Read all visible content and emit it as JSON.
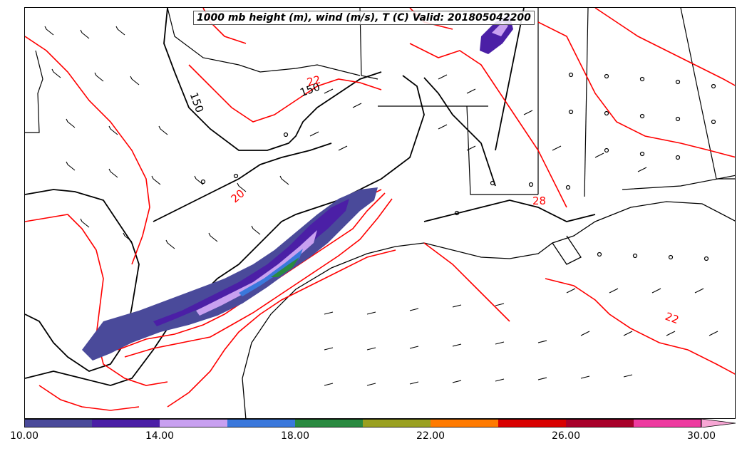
{
  "title": "1000 mb height (m), wind (m/s), T (C) Valid: 201805042200",
  "contour_labels": {
    "height_150_a": "150",
    "height_150_b": "150",
    "temp_22_a": "22",
    "temp_20": "20",
    "temp_28": "28",
    "temp_22_b": "22"
  },
  "colorbar": {
    "colors": [
      "#4a4a9a",
      "#4b1fa6",
      "#c8a0f0",
      "#3a78dc",
      "#2a8a40",
      "#9aa020",
      "#ff7a00",
      "#d90000",
      "#a8002a",
      "#ee3aa0",
      "#f7a6d4"
    ],
    "tick_labels": [
      "10.00",
      "14.00",
      "18.00",
      "22.00",
      "26.00",
      "30.00"
    ]
  },
  "colors": {
    "temperature_contour": "#ff0000",
    "height_contour": "#000000",
    "boundaries": "#000000"
  }
}
